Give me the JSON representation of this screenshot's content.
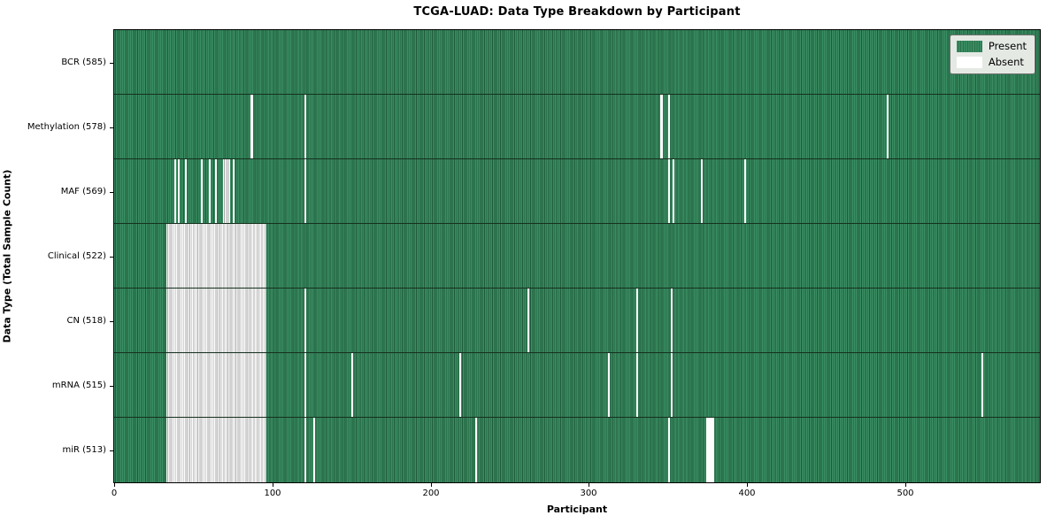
{
  "title": "TCGA-LUAD: Data Type Breakdown by Participant",
  "chart_data": {
    "type": "heatmap",
    "title": "TCGA-LUAD: Data Type Breakdown by Participant",
    "xlabel": "Participant",
    "ylabel": "Data Type (Total Sample Count)",
    "x_range": [
      0,
      585
    ],
    "total_participants": 585,
    "x_ticks": [
      0,
      100,
      200,
      300,
      400,
      500
    ],
    "grid": false,
    "legend": {
      "position": "upper right",
      "entries": [
        {
          "label": "Present",
          "color": "#2e8055"
        },
        {
          "label": "Absent",
          "color": "#ffffff"
        }
      ]
    },
    "rows": [
      {
        "label": "BCR (585)",
        "data_type": "BCR",
        "sample_count": 585,
        "absent_count": 0,
        "absent_ranges": []
      },
      {
        "label": "Methylation (578)",
        "data_type": "Methylation",
        "sample_count": 578,
        "absent_count": 7,
        "absent_ranges": [
          [
            86,
            87
          ],
          [
            120,
            120
          ],
          [
            345,
            346
          ],
          [
            350,
            350
          ],
          [
            488,
            488
          ]
        ]
      },
      {
        "label": "MAF (569)",
        "data_type": "MAF",
        "sample_count": 569,
        "absent_count": 16,
        "absent_ranges": [
          [
            38,
            38
          ],
          [
            40,
            40
          ],
          [
            45,
            45
          ],
          [
            55,
            55
          ],
          [
            60,
            60
          ],
          [
            64,
            64
          ],
          [
            69,
            72
          ],
          [
            75,
            75
          ],
          [
            120,
            120
          ],
          [
            350,
            350
          ],
          [
            353,
            353
          ],
          [
            371,
            371
          ],
          [
            398,
            398
          ]
        ]
      },
      {
        "label": "Clinical (522)",
        "data_type": "Clinical",
        "sample_count": 522,
        "absent_count": 63,
        "absent_ranges": [
          [
            33,
            95
          ]
        ]
      },
      {
        "label": "CN (518)",
        "data_type": "CN",
        "sample_count": 518,
        "absent_count": 67,
        "absent_ranges": [
          [
            33,
            95
          ],
          [
            120,
            120
          ],
          [
            261,
            261
          ],
          [
            330,
            330
          ],
          [
            352,
            352
          ]
        ]
      },
      {
        "label": "mRNA (515)",
        "data_type": "mRNA",
        "sample_count": 515,
        "absent_count": 70,
        "absent_ranges": [
          [
            33,
            95
          ],
          [
            120,
            120
          ],
          [
            150,
            150
          ],
          [
            218,
            218
          ],
          [
            312,
            312
          ],
          [
            330,
            330
          ],
          [
            352,
            352
          ],
          [
            548,
            548
          ]
        ]
      },
      {
        "label": "miR (513)",
        "data_type": "miR",
        "sample_count": 513,
        "absent_count": 72,
        "absent_ranges": [
          [
            33,
            95
          ],
          [
            120,
            120
          ],
          [
            126,
            126
          ],
          [
            228,
            228
          ],
          [
            350,
            350
          ],
          [
            374,
            376
          ],
          [
            377,
            378
          ]
        ]
      }
    ],
    "colors": {
      "present": "#2e8055",
      "present_light": "#3a8e63",
      "present_dark": "#1e5a39",
      "absent": "#ffffff",
      "absent_grid_line": "#a6a6a6",
      "row_border": "#16301f",
      "plot_border": "#000000",
      "legend_bg": "#e4e9e4",
      "legend_border": "#6f6f6f"
    }
  }
}
